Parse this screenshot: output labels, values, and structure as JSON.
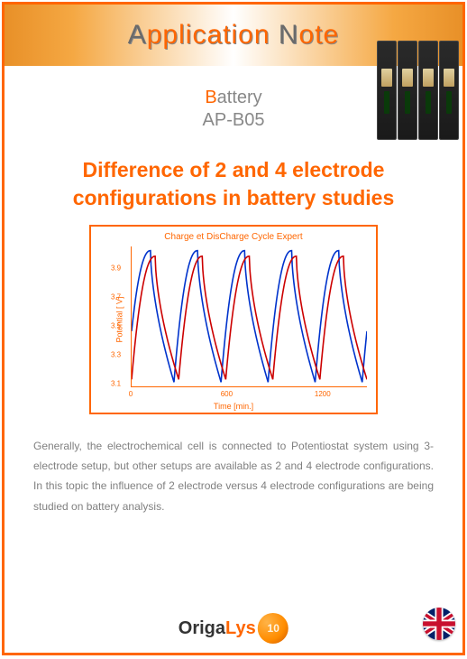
{
  "header": {
    "title_pre_cap": "A",
    "title_word1_rest": "pplication",
    "title_cap2": "N",
    "title_word2_rest": "ote"
  },
  "subhead": {
    "category_initial": "B",
    "category_rest": "attery",
    "code": "AP-B05"
  },
  "title": "Difference of 2 and 4 electrode configurations in battery studies",
  "chart": {
    "title": "Charge et DisCharge Cycle Expert",
    "ylabel": "Potential [ V]",
    "xlabel": "Time [min.]",
    "ylim": [
      3.05,
      4.05
    ],
    "yticks": [
      3.1,
      3.3,
      3.5,
      3.7,
      3.9
    ],
    "xlim": [
      0,
      1500
    ],
    "xticks": [
      0,
      600,
      1200
    ],
    "colors": {
      "series_a": "#cc0000",
      "series_b": "#0033cc",
      "axis": "#ff6600",
      "bg": "#ffffff"
    },
    "line_width": 1.6,
    "cycle_period_min": 300,
    "n_cycles": 5,
    "red_phase_offset": 0.0,
    "blue_phase_offset": 30
  },
  "body": "Generally, the electrochemical cell is connected to Potentiostat system using 3-electrode setup, but other setups are available as 2 and 4 electrode configurations. In this topic the influence of 2 electrode versus 4 electrode configurations are being studied on battery analysis.",
  "footer": {
    "brand_part1": "Origa",
    "brand_part2": "Lys",
    "seal_years": "10",
    "flag": "uk"
  }
}
